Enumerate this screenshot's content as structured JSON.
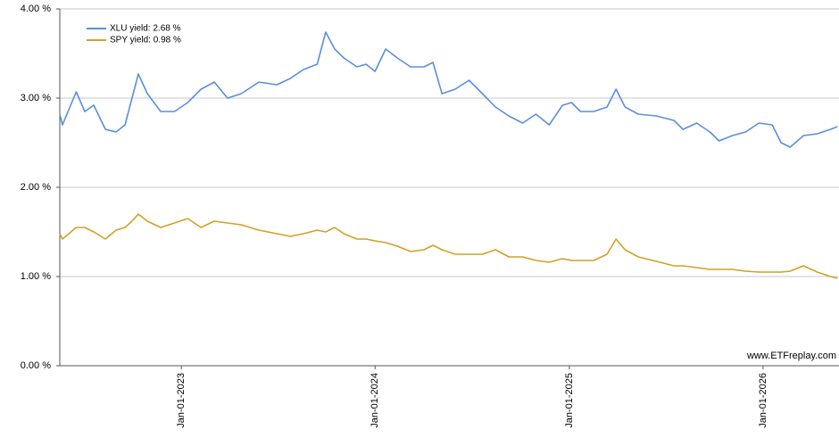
{
  "chart_data": {
    "type": "line",
    "x": [
      "2022-05-17",
      "2022-05-22",
      "2022-06-17",
      "2022-07-03",
      "2022-07-20",
      "2022-08-11",
      "2022-08-31",
      "2022-09-17",
      "2022-09-30",
      "2022-10-12",
      "2022-10-29",
      "2022-11-23",
      "2022-12-19",
      "2023-01-13",
      "2023-02-07",
      "2023-03-04",
      "2023-03-29",
      "2023-04-24",
      "2023-05-27",
      "2023-06-30",
      "2023-07-25",
      "2023-08-19",
      "2023-09-14",
      "2023-09-30",
      "2023-10-17",
      "2023-11-03",
      "2023-11-28",
      "2023-12-15",
      "2024-01-01",
      "2024-01-21",
      "2024-02-12",
      "2024-03-08",
      "2024-04-02",
      "2024-04-19",
      "2024-05-06",
      "2024-05-31",
      "2024-06-26",
      "2024-07-21",
      "2024-08-15",
      "2024-09-09",
      "2024-10-05",
      "2024-10-30",
      "2024-11-24",
      "2024-12-19",
      "2025-01-05",
      "2025-01-22",
      "2025-02-16",
      "2025-03-13",
      "2025-03-30",
      "2025-04-16",
      "2025-05-11",
      "2025-06-14",
      "2025-07-17",
      "2025-08-03",
      "2025-08-29",
      "2025-09-23",
      "2025-10-10",
      "2025-11-04",
      "2025-11-29",
      "2025-12-24",
      "2026-01-18",
      "2026-02-04",
      "2026-02-21",
      "2026-03-18",
      "2026-04-13",
      "2026-05-08",
      "2026-05-21"
    ],
    "series": [
      {
        "name": "XLU yield: 2.68 %",
        "color": "#5b8ee0",
        "values": [
          2.82,
          2.7,
          3.07,
          2.85,
          2.92,
          2.65,
          2.62,
          2.7,
          3.0,
          3.27,
          3.05,
          2.85,
          2.85,
          2.95,
          3.1,
          3.18,
          3.0,
          3.05,
          3.18,
          3.15,
          3.22,
          3.32,
          3.38,
          3.74,
          3.55,
          3.45,
          3.35,
          3.38,
          3.3,
          3.55,
          3.45,
          3.35,
          3.35,
          3.4,
          3.05,
          3.1,
          3.2,
          3.05,
          2.9,
          2.8,
          2.72,
          2.82,
          2.7,
          2.92,
          2.95,
          2.85,
          2.85,
          2.9,
          3.1,
          2.9,
          2.82,
          2.8,
          2.75,
          2.65,
          2.72,
          2.62,
          2.52,
          2.58,
          2.62,
          2.72,
          2.7,
          2.5,
          2.45,
          2.58,
          2.6,
          2.65,
          2.68
        ]
      },
      {
        "name": "SPY yield: 0.98 %",
        "color": "#d4a024",
        "values": [
          1.48,
          1.42,
          1.55,
          1.55,
          1.5,
          1.42,
          1.52,
          1.55,
          1.62,
          1.7,
          1.62,
          1.55,
          1.6,
          1.65,
          1.55,
          1.62,
          1.6,
          1.58,
          1.52,
          1.48,
          1.45,
          1.48,
          1.52,
          1.5,
          1.55,
          1.48,
          1.42,
          1.42,
          1.4,
          1.38,
          1.34,
          1.28,
          1.3,
          1.35,
          1.3,
          1.25,
          1.25,
          1.25,
          1.3,
          1.22,
          1.22,
          1.18,
          1.16,
          1.2,
          1.18,
          1.18,
          1.18,
          1.25,
          1.42,
          1.3,
          1.22,
          1.17,
          1.12,
          1.12,
          1.1,
          1.08,
          1.08,
          1.08,
          1.06,
          1.05,
          1.05,
          1.05,
          1.06,
          1.12,
          1.05,
          1.0,
          0.98
        ]
      }
    ],
    "xlim": [
      "2022-05-17",
      "2026-05-24"
    ],
    "xticks": [
      {
        "value": "2023-01-01",
        "label": "Jan-01-2023"
      },
      {
        "value": "2024-01-01",
        "label": "Jan-01-2024"
      },
      {
        "value": "2025-01-01",
        "label": "Jan-01-2025"
      },
      {
        "value": "2026-01-01",
        "label": "Jan-01-2026"
      }
    ],
    "ylim": [
      0,
      4
    ],
    "yticks": [
      {
        "value": 0,
        "label": "0.00 %"
      },
      {
        "value": 1,
        "label": "1.00 %"
      },
      {
        "value": 2,
        "label": "2.00 %"
      },
      {
        "value": 3,
        "label": "3.00 %"
      },
      {
        "value": 4,
        "label": "4.00 %"
      }
    ],
    "grid": true,
    "legend": "upper left",
    "watermark": "www.ETFreplay.com"
  }
}
